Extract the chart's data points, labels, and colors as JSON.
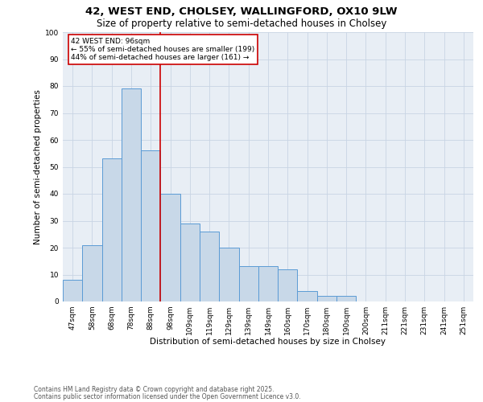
{
  "title1": "42, WEST END, CHOLSEY, WALLINGFORD, OX10 9LW",
  "title2": "Size of property relative to semi-detached houses in Cholsey",
  "xlabel": "Distribution of semi-detached houses by size in Cholsey",
  "ylabel": "Number of semi-detached properties",
  "bar_labels": [
    "47sqm",
    "58sqm",
    "68sqm",
    "78sqm",
    "88sqm",
    "98sqm",
    "109sqm",
    "119sqm",
    "129sqm",
    "139sqm",
    "149sqm",
    "160sqm",
    "170sqm",
    "180sqm",
    "190sqm",
    "200sqm",
    "211sqm",
    "221sqm",
    "231sqm",
    "241sqm",
    "251sqm"
  ],
  "bar_values": [
    8,
    21,
    53,
    79,
    56,
    40,
    29,
    26,
    20,
    13,
    13,
    12,
    4,
    2,
    2,
    0,
    0,
    0,
    0,
    0,
    0
  ],
  "bar_color": "#c8d8e8",
  "bar_edge_color": "#5b9bd5",
  "vline_color": "#cc0000",
  "annotation_text": "42 WEST END: 96sqm\n← 55% of semi-detached houses are smaller (199)\n44% of semi-detached houses are larger (161) →",
  "annotation_box_color": "#ffffff",
  "annotation_box_edge": "#cc0000",
  "ylim": [
    0,
    100
  ],
  "yticks": [
    0,
    10,
    20,
    30,
    40,
    50,
    60,
    70,
    80,
    90,
    100
  ],
  "footer1": "Contains HM Land Registry data © Crown copyright and database right 2025.",
  "footer2": "Contains public sector information licensed under the Open Government Licence v3.0.",
  "bg_color": "#ffffff",
  "plot_bg_color": "#e8eef5",
  "grid_color": "#c8d4e4",
  "title1_fontsize": 9.5,
  "title2_fontsize": 8.5,
  "axis_label_fontsize": 7.5,
  "tick_fontsize": 6.5,
  "annotation_fontsize": 6.5,
  "footer_fontsize": 5.5
}
